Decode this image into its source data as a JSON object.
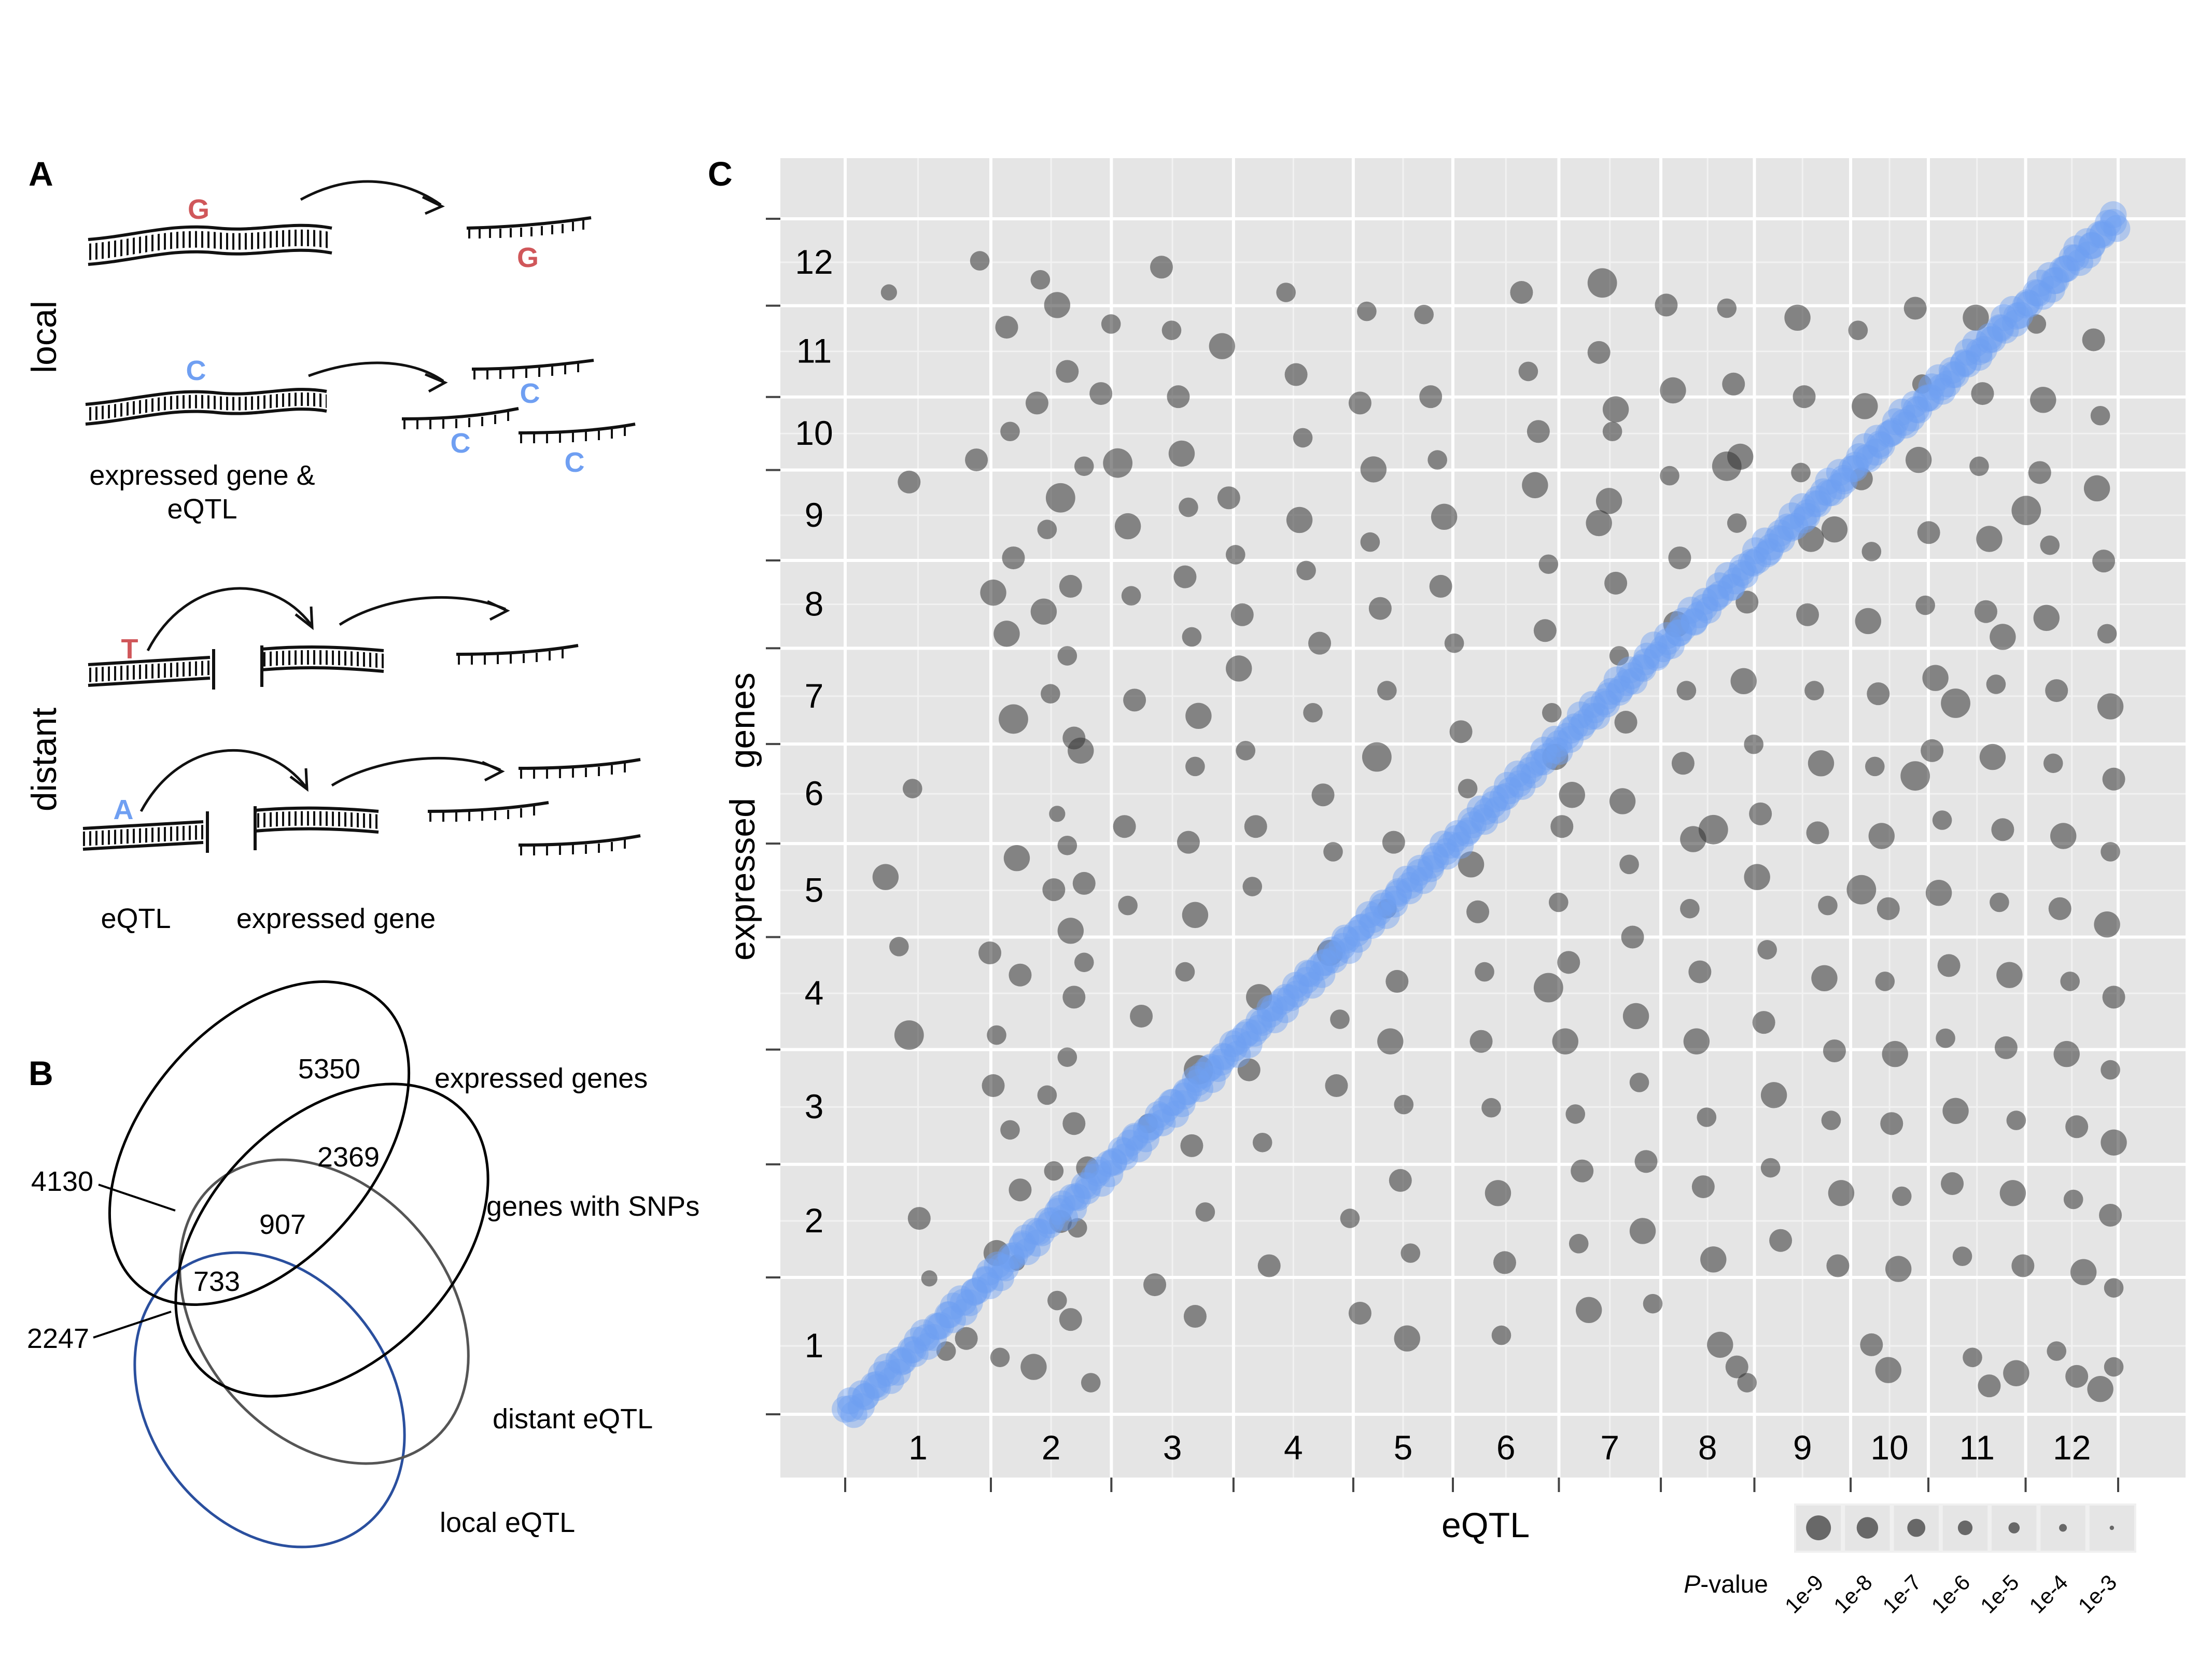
{
  "panelA": {
    "letter": "A",
    "group_local": "local",
    "group_distant": "distant",
    "label_gene_eqtl_1": "expressed gene &",
    "label_gene_eqtl_2": "eQTL",
    "label_eqtl": "eQTL",
    "label_expressed_gene": "expressed gene",
    "alleles": {
      "g1": "G",
      "g2": "G",
      "c1": "C",
      "c2": "C",
      "c3": "C",
      "c4": "C",
      "t": "T",
      "a": "A"
    },
    "colors": {
      "red": "#d0575a",
      "blue": "#6f9ff2"
    }
  },
  "panelB": {
    "letter": "B",
    "numbers": {
      "n5350": "5350",
      "n2369": "2369",
      "n4130": "4130",
      "n907": "907",
      "n733": "733",
      "n2247": "2247"
    },
    "labels": {
      "expressed": "expressed genes",
      "snps": "genes with SNPs",
      "distant": "distant eQTL",
      "local": "local eQTL"
    },
    "colors": {
      "expressed": "#000000",
      "snps": "#000000",
      "distant": "#555555",
      "local": "#2a4f9e"
    }
  },
  "chart_data": {
    "type": "scatter",
    "panel_letter": "C",
    "xlabel": "eQTL",
    "ylabel": "expressed   genes",
    "chromosomes": [
      "1",
      "2",
      "3",
      "4",
      "5",
      "6",
      "7",
      "8",
      "9",
      "10",
      "11",
      "12"
    ],
    "chromosome_boundaries": [
      0,
      43.3,
      79.1,
      115.4,
      151,
      180.6,
      212.1,
      242.4,
      270.2,
      298.8,
      321.9,
      350.8,
      378.3
    ],
    "xlim": [
      0,
      378.3
    ],
    "ylim": [
      0,
      378.3
    ],
    "diagonal_color": "#6f9ff2",
    "point_color": "#333333",
    "panel_bg": "#e5e5e5",
    "legend": {
      "title_italic": "P",
      "title_rest": "-value",
      "levels": [
        "1e-9",
        "1e-8",
        "1e-7",
        "1e-6",
        "1e-5",
        "1e-4",
        "1e-3"
      ]
    },
    "series_cis": {
      "description_units": "cumulative genome position (Mb)",
      "range": [
        0,
        378.3
      ]
    },
    "series_trans": [
      [
        13,
        355,
        3
      ],
      [
        19,
        295,
        5
      ],
      [
        12,
        170,
        6
      ],
      [
        16,
        148,
        4
      ],
      [
        20,
        198,
        4
      ],
      [
        19,
        120,
        7
      ],
      [
        22,
        62,
        5
      ],
      [
        25,
        43,
        3
      ],
      [
        30,
        20,
        4
      ],
      [
        36,
        24,
        5
      ],
      [
        40,
        365,
        4
      ],
      [
        39,
        302,
        5
      ],
      [
        44,
        260,
        6
      ],
      [
        43,
        146,
        5
      ],
      [
        45,
        120,
        4
      ],
      [
        44,
        104,
        5
      ],
      [
        45,
        51,
        6
      ],
      [
        46,
        18,
        4
      ],
      [
        48,
        344,
        5
      ],
      [
        49,
        311,
        4
      ],
      [
        50,
        271,
        5
      ],
      [
        48,
        247,
        6
      ],
      [
        50,
        220,
        7
      ],
      [
        51,
        176,
        6
      ],
      [
        52,
        139,
        5
      ],
      [
        49,
        90,
        4
      ],
      [
        52,
        71,
        5
      ],
      [
        51,
        48,
        3
      ],
      [
        56,
        15,
        6
      ],
      [
        58,
        359,
        4
      ],
      [
        57,
        320,
        5
      ],
      [
        60,
        280,
        4
      ],
      [
        59,
        254,
        6
      ],
      [
        61,
        228,
        4
      ],
      [
        63,
        190,
        3
      ],
      [
        62,
        166,
        5
      ],
      [
        60,
        101,
        4
      ],
      [
        62,
        77,
        4
      ],
      [
        64,
        61,
        5
      ],
      [
        63,
        36,
        4
      ],
      [
        63,
        351,
        6
      ],
      [
        66,
        330,
        5
      ],
      [
        64,
        290,
        7
      ],
      [
        67,
        262,
        5
      ],
      [
        66,
        240,
        4
      ],
      [
        68,
        214,
        5
      ],
      [
        66,
        180,
        4
      ],
      [
        67,
        153,
        6
      ],
      [
        68,
        132,
        5
      ],
      [
        66,
        113,
        4
      ],
      [
        68,
        92,
        5
      ],
      [
        69,
        59,
        4
      ],
      [
        67,
        30,
        5
      ],
      [
        71,
        300,
        4
      ],
      [
        70,
        210,
        6
      ],
      [
        71,
        168,
        5
      ],
      [
        71,
        143,
        4
      ],
      [
        72,
        78,
        5
      ],
      [
        73,
        10,
        4
      ],
      [
        76,
        323,
        5
      ],
      [
        79,
        345,
        4
      ],
      [
        81,
        301,
        7
      ],
      [
        84,
        281,
        6
      ],
      [
        85,
        259,
        4
      ],
      [
        86,
        226,
        5
      ],
      [
        83,
        186,
        5
      ],
      [
        84,
        161,
        4
      ],
      [
        88,
        126,
        5
      ],
      [
        90,
        92,
        4
      ],
      [
        92,
        41,
        5
      ],
      [
        94,
        363,
        5
      ],
      [
        97,
        343,
        4
      ],
      [
        99,
        322,
        5
      ],
      [
        100,
        304,
        6
      ],
      [
        102,
        287,
        4
      ],
      [
        101,
        265,
        5
      ],
      [
        103,
        246,
        4
      ],
      [
        105,
        221,
        6
      ],
      [
        104,
        205,
        4
      ],
      [
        102,
        181,
        5
      ],
      [
        104,
        158,
        6
      ],
      [
        101,
        140,
        4
      ],
      [
        105,
        109,
        7
      ],
      [
        103,
        85,
        5
      ],
      [
        107,
        64,
        4
      ],
      [
        104,
        31,
        5
      ],
      [
        112,
        338,
        6
      ],
      [
        114,
        290,
        5
      ],
      [
        116,
        272,
        4
      ],
      [
        118,
        253,
        5
      ],
      [
        117,
        236,
        6
      ],
      [
        119,
        210,
        4
      ],
      [
        122,
        186,
        5
      ],
      [
        121,
        167,
        4
      ],
      [
        123,
        132,
        6
      ],
      [
        120,
        109,
        5
      ],
      [
        124,
        86,
        4
      ],
      [
        126,
        47,
        5
      ],
      [
        131,
        355,
        4
      ],
      [
        134,
        329,
        5
      ],
      [
        136,
        309,
        4
      ],
      [
        135,
        283,
        6
      ],
      [
        137,
        267,
        4
      ],
      [
        141,
        244,
        5
      ],
      [
        139,
        222,
        4
      ],
      [
        142,
        196,
        5
      ],
      [
        145,
        178,
        4
      ],
      [
        144,
        146,
        6
      ],
      [
        147,
        125,
        4
      ],
      [
        146,
        104,
        5
      ],
      [
        150,
        62,
        4
      ],
      [
        153,
        32,
        5
      ],
      [
        155,
        349,
        4
      ],
      [
        153,
        320,
        5
      ],
      [
        157,
        299,
        6
      ],
      [
        156,
        276,
        4
      ],
      [
        159,
        255,
        5
      ],
      [
        161,
        229,
        4
      ],
      [
        158,
        208,
        7
      ],
      [
        163,
        181,
        5
      ],
      [
        161,
        160,
        4
      ],
      [
        164,
        137,
        5
      ],
      [
        162,
        118,
        6
      ],
      [
        166,
        98,
        4
      ],
      [
        165,
        74,
        5
      ],
      [
        168,
        51,
        4
      ],
      [
        167,
        24,
        6
      ],
      [
        172,
        348,
        4
      ],
      [
        174,
        322,
        5
      ],
      [
        176,
        302,
        4
      ],
      [
        178,
        284,
        6
      ],
      [
        177,
        262,
        5
      ],
      [
        181,
        244,
        4
      ],
      [
        183,
        216,
        5
      ],
      [
        185,
        198,
        4
      ],
      [
        186,
        174,
        6
      ],
      [
        188,
        159,
        5
      ],
      [
        190,
        140,
        4
      ],
      [
        189,
        118,
        5
      ],
      [
        192,
        97,
        4
      ],
      [
        194,
        70,
        6
      ],
      [
        196,
        48,
        5
      ],
      [
        195,
        25,
        4
      ],
      [
        201,
        355,
        5
      ],
      [
        203,
        330,
        4
      ],
      [
        206,
        311,
        5
      ],
      [
        205,
        294,
        6
      ],
      [
        209,
        269,
        4
      ],
      [
        208,
        248,
        5
      ],
      [
        210,
        222,
        4
      ],
      [
        211,
        208,
        6
      ],
      [
        213,
        186,
        5
      ],
      [
        212,
        162,
        4
      ],
      [
        215,
        143,
        5
      ],
      [
        214,
        118,
        6
      ],
      [
        217,
        95,
        4
      ],
      [
        219,
        77,
        5
      ],
      [
        218,
        54,
        4
      ],
      [
        221,
        33,
        6
      ],
      [
        225,
        358,
        7
      ],
      [
        224,
        336,
        5
      ],
      [
        228,
        311,
        4
      ],
      [
        227,
        289,
        6
      ],
      [
        229,
        263,
        5
      ],
      [
        230,
        240,
        4
      ],
      [
        232,
        219,
        5
      ],
      [
        231,
        194,
        6
      ],
      [
        233,
        174,
        4
      ],
      [
        234,
        151,
        5
      ],
      [
        235,
        126,
        6
      ],
      [
        236,
        105,
        4
      ],
      [
        238,
        80,
        5
      ],
      [
        237,
        58,
        6
      ],
      [
        240,
        35,
        4
      ],
      [
        244,
        351,
        5
      ],
      [
        246,
        324,
        6
      ],
      [
        245,
        297,
        4
      ],
      [
        248,
        271,
        5
      ],
      [
        247,
        250,
        6
      ],
      [
        250,
        229,
        4
      ],
      [
        249,
        206,
        5
      ],
      [
        252,
        182,
        6
      ],
      [
        251,
        160,
        4
      ],
      [
        254,
        140,
        5
      ],
      [
        253,
        118,
        6
      ],
      [
        256,
        94,
        4
      ],
      [
        255,
        72,
        5
      ],
      [
        258,
        49,
        6
      ],
      [
        262,
        350,
        4
      ],
      [
        264,
        326,
        5
      ],
      [
        266,
        303,
        6
      ],
      [
        265,
        282,
        4
      ],
      [
        268,
        257,
        5
      ],
      [
        267,
        232,
        6
      ],
      [
        270,
        212,
        4
      ],
      [
        272,
        190,
        5
      ],
      [
        271,
        170,
        6
      ],
      [
        274,
        147,
        4
      ],
      [
        273,
        124,
        5
      ],
      [
        276,
        101,
        6
      ],
      [
        275,
        78,
        4
      ],
      [
        278,
        55,
        5
      ],
      [
        283,
        347,
        6
      ],
      [
        285,
        322,
        5
      ],
      [
        284,
        298,
        4
      ],
      [
        287,
        277,
        6
      ],
      [
        286,
        253,
        5
      ],
      [
        288,
        229,
        4
      ],
      [
        290,
        206,
        6
      ],
      [
        289,
        184,
        5
      ],
      [
        292,
        161,
        4
      ],
      [
        291,
        138,
        6
      ],
      [
        294,
        115,
        5
      ],
      [
        293,
        93,
        4
      ],
      [
        296,
        70,
        6
      ],
      [
        295,
        47,
        5
      ],
      [
        301,
        343,
        4
      ],
      [
        303,
        319,
        6
      ],
      [
        302,
        296,
        5
      ],
      [
        305,
        273,
        4
      ],
      [
        304,
        251,
        6
      ],
      [
        307,
        228,
        5
      ],
      [
        306,
        205,
        4
      ],
      [
        308,
        183,
        6
      ],
      [
        310,
        160,
        5
      ],
      [
        309,
        137,
        4
      ],
      [
        312,
        114,
        6
      ],
      [
        311,
        92,
        5
      ],
      [
        314,
        69,
        4
      ],
      [
        313,
        46,
        6
      ],
      [
        318,
        350,
        5
      ],
      [
        320,
        326,
        4
      ],
      [
        319,
        302,
        6
      ],
      [
        322,
        279,
        5
      ],
      [
        321,
        256,
        4
      ],
      [
        324,
        233,
        6
      ],
      [
        323,
        210,
        5
      ],
      [
        326,
        188,
        4
      ],
      [
        325,
        165,
        6
      ],
      [
        328,
        142,
        5
      ],
      [
        327,
        119,
        4
      ],
      [
        330,
        96,
        6
      ],
      [
        329,
        73,
        5
      ],
      [
        332,
        50,
        4
      ],
      [
        336,
        347,
        6
      ],
      [
        338,
        323,
        5
      ],
      [
        337,
        300,
        4
      ],
      [
        340,
        277,
        6
      ],
      [
        339,
        254,
        5
      ],
      [
        342,
        231,
        4
      ],
      [
        341,
        208,
        6
      ],
      [
        344,
        185,
        5
      ],
      [
        343,
        162,
        4
      ],
      [
        346,
        139,
        6
      ],
      [
        345,
        116,
        5
      ],
      [
        348,
        93,
        4
      ],
      [
        347,
        70,
        6
      ],
      [
        350,
        47,
        5
      ],
      [
        354,
        345,
        4
      ],
      [
        356,
        321,
        6
      ],
      [
        355,
        298,
        5
      ],
      [
        358,
        275,
        4
      ],
      [
        357,
        252,
        6
      ],
      [
        360,
        229,
        5
      ],
      [
        359,
        206,
        4
      ],
      [
        362,
        183,
        6
      ],
      [
        361,
        160,
        5
      ],
      [
        364,
        137,
        4
      ],
      [
        363,
        114,
        6
      ],
      [
        366,
        91,
        5
      ],
      [
        365,
        68,
        4
      ],
      [
        368,
        45,
        6
      ],
      [
        371,
        340,
        5
      ],
      [
        373,
        316,
        4
      ],
      [
        372,
        293,
        6
      ],
      [
        374,
        270,
        5
      ],
      [
        375,
        247,
        4
      ],
      [
        376,
        224,
        6
      ],
      [
        377,
        201,
        5
      ],
      [
        376,
        178,
        4
      ],
      [
        375,
        155,
        6
      ],
      [
        377,
        132,
        5
      ],
      [
        376,
        109,
        4
      ],
      [
        377,
        86,
        6
      ],
      [
        376,
        63,
        5
      ],
      [
        377,
        40,
        4
      ],
      [
        260,
        22,
        6
      ],
      [
        265,
        15,
        5
      ],
      [
        268,
        10,
        4
      ],
      [
        305,
        22,
        5
      ],
      [
        310,
        14,
        6
      ],
      [
        335,
        18,
        4
      ],
      [
        340,
        9,
        5
      ],
      [
        348,
        13,
        6
      ],
      [
        360,
        20,
        4
      ],
      [
        366,
        12,
        5
      ],
      [
        373,
        8,
        6
      ],
      [
        377,
        15,
        4
      ],
      [
        258,
        185,
        7
      ],
      [
        262,
        300,
        7
      ],
      [
        294,
        280,
        6
      ],
      [
        302,
        166,
        7
      ],
      [
        318,
        202,
        7
      ],
      [
        330,
        225,
        7
      ],
      [
        344,
        246,
        6
      ],
      [
        351,
        286,
        7
      ],
      [
        229,
        318,
        6
      ],
      [
        209,
        135,
        7
      ],
      [
        216,
        196,
        6
      ],
      [
        224,
        282,
        6
      ]
    ]
  }
}
